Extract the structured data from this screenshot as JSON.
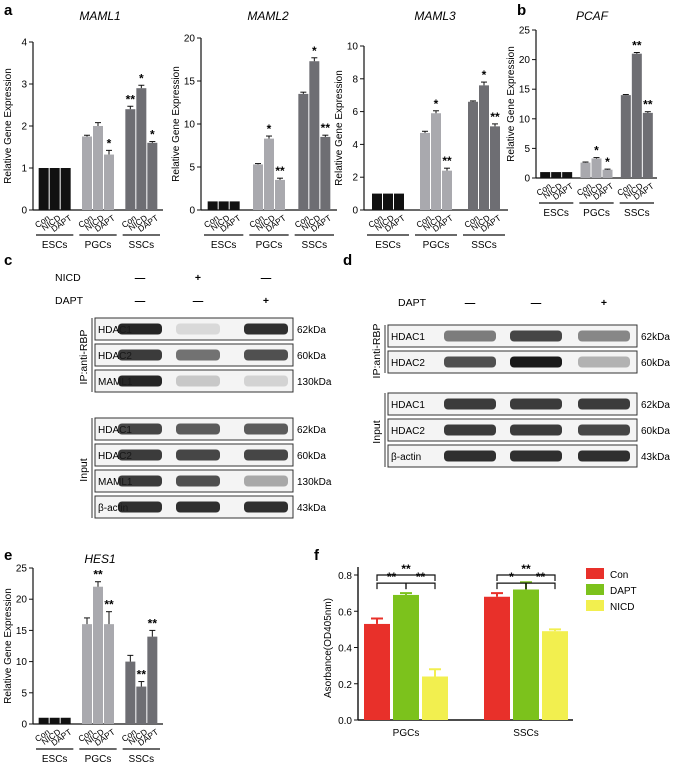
{
  "panels": {
    "a": {
      "label": "a"
    },
    "b": {
      "label": "b"
    },
    "c": {
      "label": "c",
      "treatments": [
        {
          "name": "NICD",
          "marks": [
            "—",
            "+",
            "—"
          ]
        },
        {
          "name": "DAPT",
          "marks": [
            "—",
            "—",
            "+"
          ]
        }
      ],
      "ip_label": "IP:anti-RBP",
      "input_label": "Input",
      "ip_rows": [
        {
          "band": "HDAC1",
          "size": "62kDa"
        },
        {
          "band": "HDAC2",
          "size": "60kDa"
        },
        {
          "band": "MAML1",
          "size": "130kDa"
        }
      ],
      "input_rows": [
        {
          "band": "HDAC1",
          "size": "62kDa"
        },
        {
          "band": "HDAC2",
          "size": "60kDa"
        },
        {
          "band": "MAML1",
          "size": "130kDa"
        },
        {
          "band": "β-actin",
          "size": "43kDa"
        }
      ]
    },
    "d": {
      "label": "d",
      "treatments": [
        {
          "name": "NICD",
          "marks": [
            "—",
            "+",
            "—"
          ]
        },
        {
          "name": "DAPT",
          "marks": [
            "—",
            "—",
            "+"
          ]
        }
      ],
      "ip_label": "IP:anti-RBP",
      "input_label": "Input",
      "ip_rows": [
        {
          "band": "HDAC1",
          "size": "62kDa"
        },
        {
          "band": "HDAC2",
          "size": "60kDa"
        }
      ],
      "input_rows": [
        {
          "band": "HDAC1",
          "size": "62kDa"
        },
        {
          "band": "HDAC2",
          "size": "60kDa"
        },
        {
          "band": "β-actin",
          "size": "43kDa"
        }
      ]
    },
    "e": {
      "label": "e"
    },
    "f": {
      "label": "f"
    }
  },
  "chart_data": [
    {
      "id": "maml1",
      "type": "bar",
      "title": "MAML1",
      "ylabel": "Relative Gene Expression",
      "ylim": [
        0,
        4
      ],
      "yticks": [
        0,
        1,
        2,
        3,
        4
      ],
      "groups": [
        "ESCs",
        "PGCs",
        "SSCs"
      ],
      "categories": [
        "Con",
        "NICD",
        "DAPT"
      ],
      "values": [
        [
          1.0,
          1.0,
          1.0
        ],
        [
          1.75,
          2.0,
          1.32
        ],
        [
          2.4,
          2.9,
          1.6
        ]
      ],
      "errors": [
        [
          0,
          0,
          0
        ],
        [
          0.03,
          0.08,
          0.1
        ],
        [
          0.07,
          0.07,
          0.03
        ]
      ],
      "annotations": [
        [
          "",
          "",
          ""
        ],
        [
          "",
          "",
          "*"
        ],
        [
          "**",
          "*",
          "*"
        ]
      ],
      "colors": [
        "#111111",
        "#a9a9ae",
        "#6e6e73"
      ]
    },
    {
      "id": "maml2",
      "type": "bar",
      "title": "MAML2",
      "ylabel": "Relative Gene Expression",
      "ylim": [
        0,
        20
      ],
      "yticks": [
        0,
        5,
        10,
        15,
        20
      ],
      "groups": [
        "ESCs",
        "PGCs",
        "SSCs"
      ],
      "categories": [
        "Con",
        "NICD",
        "DAPT"
      ],
      "values": [
        [
          1.0,
          1.0,
          1.0
        ],
        [
          5.3,
          8.3,
          3.5
        ],
        [
          13.5,
          17.3,
          8.5
        ]
      ],
      "errors": [
        [
          0,
          0,
          0
        ],
        [
          0.1,
          0.3,
          0.2
        ],
        [
          0.2,
          0.4,
          0.2
        ]
      ],
      "annotations": [
        [
          "",
          "",
          ""
        ],
        [
          "",
          "*",
          "**"
        ],
        [
          "",
          "*",
          "**"
        ]
      ],
      "colors": [
        "#111111",
        "#a9a9ae",
        "#6e6e73"
      ]
    },
    {
      "id": "maml3",
      "type": "bar",
      "title": "MAML3",
      "ylabel": "Relative Gene Expression",
      "ylim": [
        0,
        10
      ],
      "yticks": [
        0,
        2,
        4,
        6,
        8,
        10
      ],
      "groups": [
        "ESCs",
        "PGCs",
        "SSCs"
      ],
      "categories": [
        "Con",
        "NICD",
        "DAPT"
      ],
      "values": [
        [
          1.0,
          1.0,
          1.0
        ],
        [
          4.7,
          5.9,
          2.4
        ],
        [
          6.6,
          7.6,
          5.1
        ]
      ],
      "errors": [
        [
          0,
          0,
          0
        ],
        [
          0.1,
          0.15,
          0.15
        ],
        [
          0.05,
          0.2,
          0.15
        ]
      ],
      "annotations": [
        [
          "",
          "",
          ""
        ],
        [
          "",
          "*",
          "**"
        ],
        [
          "",
          "*",
          "**"
        ]
      ],
      "colors": [
        "#111111",
        "#a9a9ae",
        "#6e6e73"
      ]
    },
    {
      "id": "pcaf",
      "type": "bar",
      "title": "PCAF",
      "ylabel": "Relative Gene Expression",
      "ylim": [
        0,
        25
      ],
      "yticks": [
        0,
        5,
        10,
        15,
        20,
        25
      ],
      "groups": [
        "ESCs",
        "PGCs",
        "SSCs"
      ],
      "categories": [
        "Con",
        "NICD",
        "DAPT"
      ],
      "values": [
        [
          1.0,
          1.0,
          1.0
        ],
        [
          2.6,
          3.3,
          1.4
        ],
        [
          14.0,
          21.0,
          11.0
        ]
      ],
      "errors": [
        [
          0,
          0,
          0
        ],
        [
          0.1,
          0.15,
          0.1
        ],
        [
          0.1,
          0.2,
          0.2
        ]
      ],
      "annotations": [
        [
          "",
          "",
          ""
        ],
        [
          "",
          "*",
          "*"
        ],
        [
          "",
          "**",
          "**"
        ]
      ],
      "colors": [
        "#111111",
        "#a9a9ae",
        "#6e6e73"
      ]
    },
    {
      "id": "hes1",
      "type": "bar",
      "title": "HES1",
      "ylabel": "Relative Gene Expression",
      "ylim": [
        0,
        25
      ],
      "yticks": [
        0,
        5,
        10,
        15,
        20,
        25
      ],
      "groups": [
        "ESCs",
        "PGCs",
        "SSCs"
      ],
      "categories": [
        "Con",
        "NICD",
        "DAPT"
      ],
      "values": [
        [
          1.0,
          1.0,
          1.0
        ],
        [
          16.0,
          22.0,
          16.0
        ],
        [
          10.0,
          6.0,
          14.0
        ]
      ],
      "errors": [
        [
          0,
          0,
          0
        ],
        [
          1.0,
          0.8,
          2.0
        ],
        [
          1.0,
          0.8,
          1.0
        ]
      ],
      "annotations": [
        [
          "",
          "",
          ""
        ],
        [
          "",
          "**",
          "**"
        ],
        [
          "",
          "**",
          "**"
        ]
      ],
      "colors": [
        "#111111",
        "#a9a9ae",
        "#6e6e73"
      ]
    },
    {
      "id": "absorbance",
      "type": "bar",
      "ylabel": "Asorbance(OD405nm)",
      "ylim": [
        0,
        0.8
      ],
      "yticks": [
        "0.0",
        "0.2",
        "0.4",
        "0.6",
        "0.8"
      ],
      "groups": [
        "PGCs",
        "SSCs"
      ],
      "series": [
        {
          "name": "Con",
          "color": "#e8302a",
          "values": [
            0.53,
            0.68
          ],
          "errors": [
            0.03,
            0.02
          ]
        },
        {
          "name": "DAPT",
          "color": "#7cc21c",
          "values": [
            0.69,
            0.72
          ],
          "errors": [
            0.01,
            0.04
          ]
        },
        {
          "name": "NICD",
          "color": "#f2ef4f",
          "values": [
            0.24,
            0.49
          ],
          "errors": [
            0.04,
            0.01
          ]
        }
      ],
      "brackets": [
        [
          "**",
          "**",
          "**"
        ],
        [
          "*",
          "**",
          "**"
        ]
      ],
      "legend": "right"
    }
  ]
}
